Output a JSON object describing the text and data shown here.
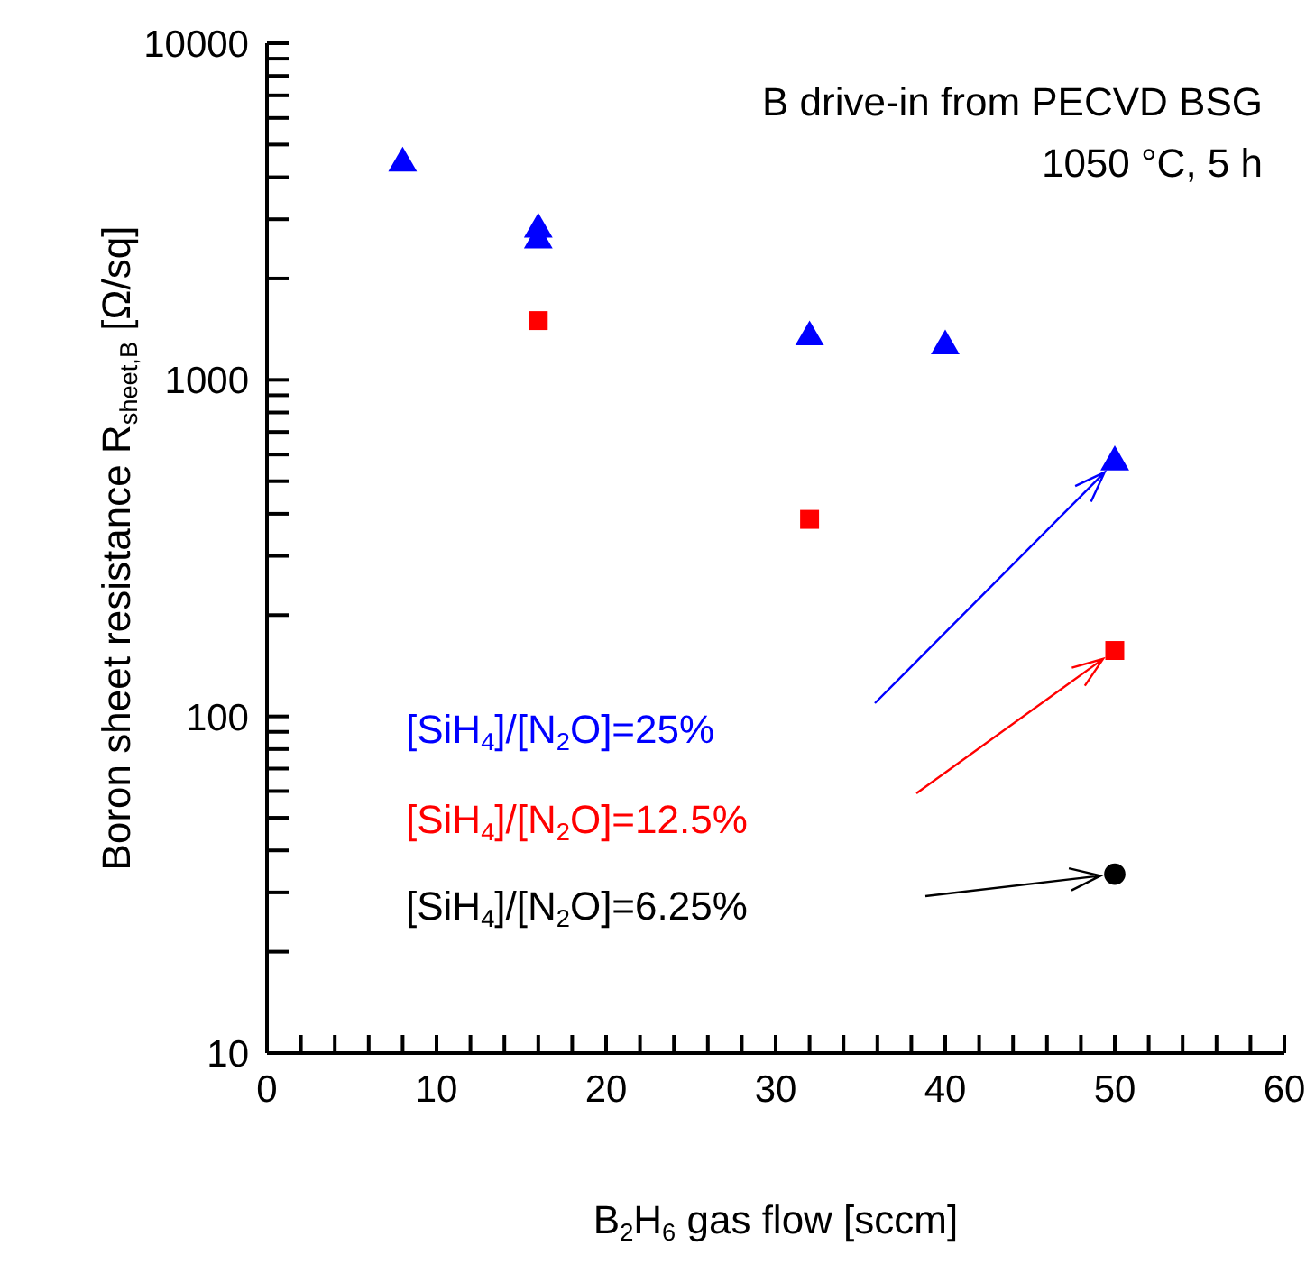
{
  "chart_data": {
    "type": "scatter",
    "xlabel": "B$_{2}$H$_{6}$ gas flow [sccm]",
    "ylabel": "Boron sheet resistance R$_{sheet,B}$ [Ω/sq]",
    "annotations": [
      "B drive-in from PECVD BSG",
      "1050 °C, 5 h"
    ],
    "log": "y",
    "grid": false,
    "legend": false,
    "xlim": [
      0,
      60
    ],
    "ylim": [
      10,
      10000
    ],
    "xticks": [
      0,
      {
        "value": 2,
        "label": null
      },
      {
        "value": 4,
        "label": null
      },
      {
        "value": 6,
        "label": null
      },
      {
        "value": 8,
        "label": null
      },
      10,
      {
        "value": 12,
        "label": null
      },
      {
        "value": 14,
        "label": null
      },
      {
        "value": 16,
        "label": null
      },
      {
        "value": 18,
        "label": null
      },
      20,
      {
        "value": 22,
        "label": null
      },
      {
        "value": 24,
        "label": null
      },
      {
        "value": 26,
        "label": null
      },
      {
        "value": 28,
        "label": null
      },
      30,
      {
        "value": 32,
        "label": null
      },
      {
        "value": 34,
        "label": null
      },
      {
        "value": 36,
        "label": null
      },
      {
        "value": 38,
        "label": null
      },
      40,
      {
        "value": 42,
        "label": null
      },
      {
        "value": 44,
        "label": null
      },
      {
        "value": 46,
        "label": null
      },
      {
        "value": 48,
        "label": null
      },
      50,
      {
        "value": 52,
        "label": null
      },
      {
        "value": 54,
        "label": null
      },
      {
        "value": 56,
        "label": null
      },
      {
        "value": 58,
        "label": null
      },
      60
    ],
    "yticks": [
      10,
      {
        "value": 20,
        "label": null
      },
      {
        "value": 30,
        "label": null
      },
      {
        "value": 40,
        "label": null
      },
      {
        "value": 50,
        "label": null
      },
      {
        "value": 60,
        "label": null
      },
      {
        "value": 70,
        "label": null
      },
      {
        "value": 80,
        "label": null
      },
      {
        "value": 90,
        "label": null
      },
      100,
      {
        "value": 200,
        "label": null
      },
      {
        "value": 300,
        "label": null
      },
      {
        "value": 400,
        "label": null
      },
      {
        "value": 500,
        "label": null
      },
      {
        "value": 600,
        "label": null
      },
      {
        "value": 700,
        "label": null
      },
      {
        "value": 800,
        "label": null
      },
      {
        "value": 900,
        "label": null
      },
      1000,
      {
        "value": 2000,
        "label": null
      },
      {
        "value": 3000,
        "label": null
      },
      {
        "value": 4000,
        "label": null
      },
      {
        "value": 5000,
        "label": null
      },
      {
        "value": 6000,
        "label": null
      },
      {
        "value": 7000,
        "label": null
      },
      {
        "value": 8000,
        "label": null
      },
      {
        "value": 9000,
        "label": null
      },
      10000
    ],
    "series": [
      {
        "name": "[SiH$_{4}$]/[N$_{2}$O]=25%",
        "color": "#0000ff",
        "marker": "triangle",
        "x": [
          8,
          16,
          16,
          32,
          40,
          50
        ],
        "values": [
          4400,
          2800,
          2600,
          1340,
          1260,
          570
        ]
      },
      {
        "name": "[SiH$_{4}$]/[N$_{2}$O]=12.5%",
        "color": "#ff0000",
        "marker": "square",
        "x": [
          16,
          32,
          50
        ],
        "values": [
          1500,
          385,
          157
        ]
      },
      {
        "name": "[SiH$_{4}$]/[N$_{2}$O]=6.25%",
        "color": "#000000",
        "marker": "circle",
        "x": [
          50
        ],
        "values": [
          34
        ]
      }
    ]
  }
}
